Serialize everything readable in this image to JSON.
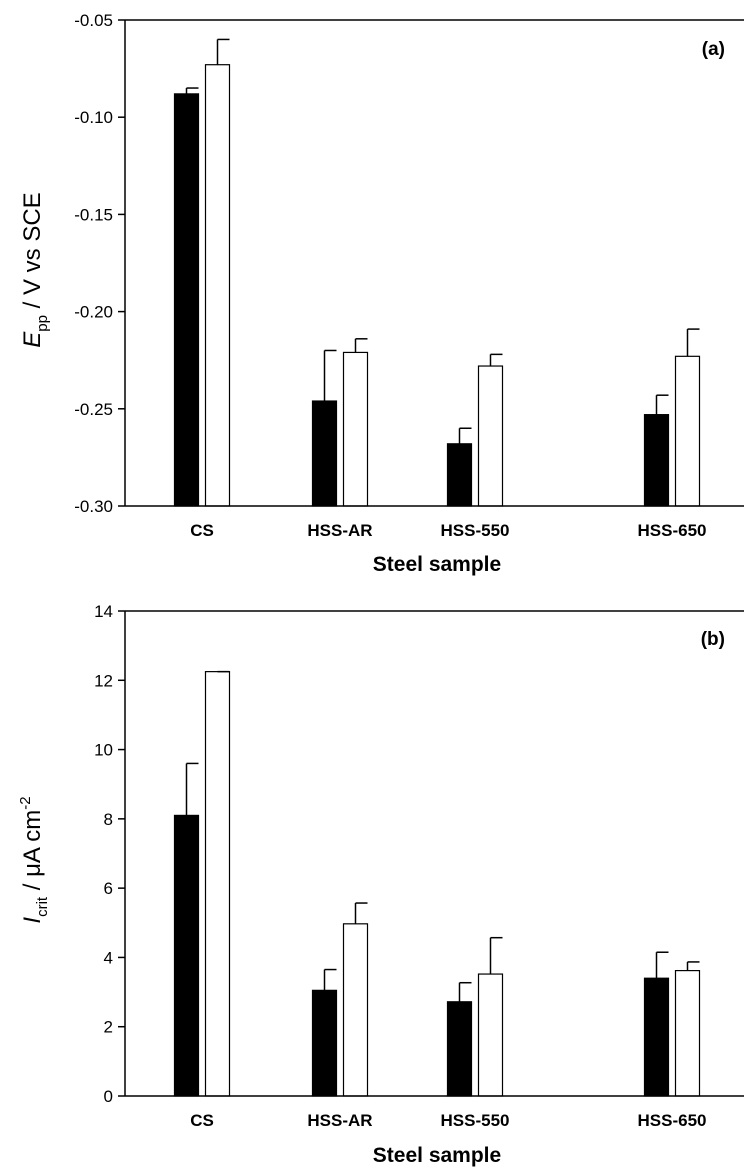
{
  "chart_data": [
    {
      "type": "bar",
      "panel_label": "(a)",
      "categories": [
        "CS",
        "HSS-AR",
        "HSS-550",
        "HSS-650"
      ],
      "series": [
        {
          "fill": "#000000",
          "values": [
            -0.088,
            -0.246,
            -0.268,
            -0.253
          ],
          "errors": [
            0.003,
            0.026,
            0.008,
            0.01
          ]
        },
        {
          "fill": "#ffffff",
          "values": [
            -0.073,
            -0.221,
            -0.228,
            -0.223
          ],
          "errors": [
            0.013,
            0.007,
            0.006,
            0.014
          ]
        }
      ],
      "xlabel": "Steel sample",
      "ylabel": {
        "symbol": "E",
        "subscript": "pp",
        "rest": " / V vs SCE"
      },
      "ylim": [
        -0.3,
        -0.05
      ],
      "yticks": [
        "-0.05",
        "-0.10",
        "-0.15",
        "-0.20",
        "-0.25",
        "-0.30"
      ],
      "ytick_values": [
        -0.05,
        -0.1,
        -0.15,
        -0.2,
        -0.25,
        -0.3
      ]
    },
    {
      "type": "bar",
      "panel_label": "(b)",
      "categories": [
        "CS",
        "HSS-AR",
        "HSS-550",
        "HSS-650"
      ],
      "series": [
        {
          "fill": "#000000",
          "values": [
            8.1,
            3.05,
            2.72,
            3.4
          ],
          "errors": [
            1.5,
            0.6,
            0.55,
            0.75
          ]
        },
        {
          "fill": "#ffffff",
          "values": [
            12.25,
            4.97,
            3.52,
            3.62
          ],
          "errors": [
            0.0,
            0.6,
            1.05,
            0.25
          ]
        }
      ],
      "xlabel": "Steel sample",
      "ylabel": {
        "symbol": "I",
        "subscript": "crit",
        "rest": " / μA cm",
        "superscript": "-2"
      },
      "ylim": [
        0,
        14
      ],
      "yticks": [
        "0",
        "2",
        "4",
        "6",
        "8",
        "10",
        "12",
        "14"
      ],
      "ytick_values": [
        0,
        2,
        4,
        6,
        8,
        10,
        12,
        14
      ]
    }
  ]
}
